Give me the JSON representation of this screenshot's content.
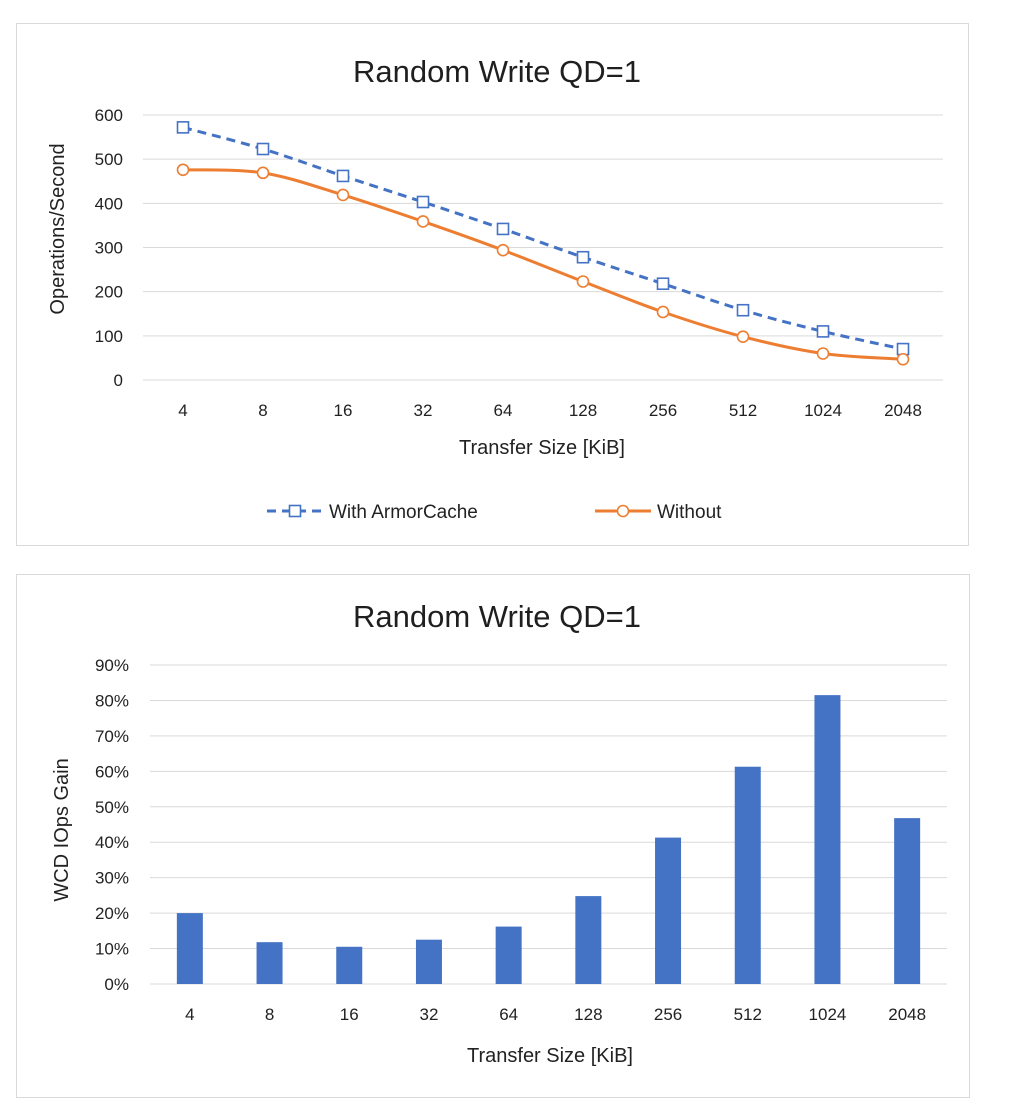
{
  "chart_data": [
    {
      "type": "line",
      "title": "Random Write  QD=1",
      "xlabel": "Transfer Size  [KiB]",
      "ylabel": "Operations/Second",
      "categories": [
        "4",
        "8",
        "16",
        "32",
        "64",
        "128",
        "256",
        "512",
        "1024",
        "2048"
      ],
      "ylim": [
        0,
        600
      ],
      "yticks": [
        0,
        100,
        200,
        300,
        400,
        500,
        600
      ],
      "grid": true,
      "legend": "bottom",
      "series": [
        {
          "name": "With ArmorCache",
          "values": [
            572,
            523,
            462,
            403,
            342,
            278,
            218,
            158,
            110,
            70
          ],
          "color": "#4472C4",
          "style": "dashed",
          "marker": "square"
        },
        {
          "name": "Without",
          "values": [
            476,
            469,
            419,
            359,
            294,
            223,
            154,
            98,
            60,
            47
          ],
          "color": "#ED7D31",
          "style": "solid",
          "marker": "circle"
        }
      ]
    },
    {
      "type": "bar",
      "title": "Random Write  QD=1",
      "xlabel": "Transfer Size  [KiB]",
      "ylabel": "WCD IOps Gain",
      "categories": [
        "4",
        "8",
        "16",
        "32",
        "64",
        "128",
        "256",
        "512",
        "1024",
        "2048"
      ],
      "ylim": [
        0,
        90
      ],
      "yticks": [
        "0%",
        "10%",
        "20%",
        "30%",
        "40%",
        "50%",
        "60%",
        "70%",
        "80%",
        "90%"
      ],
      "grid": true,
      "legend": "none",
      "unit": "%",
      "values": [
        20,
        11.8,
        10.5,
        12.5,
        16.2,
        24.8,
        41.3,
        61.3,
        81.5,
        46.8
      ],
      "color": "#4472C4"
    }
  ]
}
